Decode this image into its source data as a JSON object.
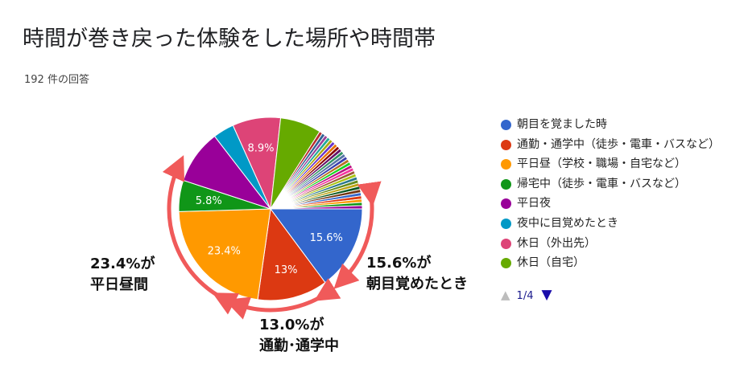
{
  "title": "時間が巻き戻った体験をした場所や時間帯",
  "response_count": "192 件の回答",
  "chart_data": {
    "type": "pie",
    "title": "時間が巻き戻った体験をした場所や時間帯",
    "slices": [
      {
        "label": "朝目を覚ました時",
        "value": 15.6,
        "color": "#3366cc",
        "data_label": "15.6%"
      },
      {
        "label": "通勤・通学中（徒歩・電車・バスなど）",
        "value": 13.0,
        "color": "#dc3912",
        "data_label": "13%"
      },
      {
        "label": "平日昼（学校・職場・自宅など）",
        "value": 23.4,
        "color": "#ff9900",
        "data_label": "23.4%"
      },
      {
        "label": "帰宅中（徒歩・電車・バスなど）",
        "value": 5.8,
        "color": "#109618",
        "data_label": "5.8%"
      },
      {
        "label": "平日夜",
        "value": 10.0,
        "color": "#990099",
        "data_label": ""
      },
      {
        "label": "夜中に目覚めたとき",
        "value": 3.9,
        "color": "#0099c6",
        "data_label": ""
      },
      {
        "label": "休日（外出先）",
        "value": 8.9,
        "color": "#dd4477",
        "data_label": "8.9%"
      },
      {
        "label": "休日（自宅）",
        "value": 7.6,
        "color": "#66aa00",
        "data_label": ""
      },
      {
        "label": "",
        "value": 0.6,
        "color": "#b82e2e"
      },
      {
        "label": "",
        "value": 0.6,
        "color": "#316395"
      },
      {
        "label": "",
        "value": 0.6,
        "color": "#994499"
      },
      {
        "label": "",
        "value": 0.6,
        "color": "#22aa99"
      },
      {
        "label": "",
        "value": 0.6,
        "color": "#aaaa11"
      },
      {
        "label": "",
        "value": 0.6,
        "color": "#6633cc"
      },
      {
        "label": "",
        "value": 0.6,
        "color": "#e67300"
      },
      {
        "label": "",
        "value": 0.6,
        "color": "#8b0707"
      },
      {
        "label": "",
        "value": 0.6,
        "color": "#651067"
      },
      {
        "label": "",
        "value": 0.6,
        "color": "#329262"
      },
      {
        "label": "",
        "value": 0.6,
        "color": "#5574a6"
      },
      {
        "label": "",
        "value": 0.6,
        "color": "#3b3eac"
      },
      {
        "label": "",
        "value": 0.6,
        "color": "#b77322"
      },
      {
        "label": "",
        "value": 0.6,
        "color": "#16d620"
      },
      {
        "label": "",
        "value": 0.6,
        "color": "#b91383"
      },
      {
        "label": "",
        "value": 0.6,
        "color": "#f4359e"
      },
      {
        "label": "",
        "value": 0.6,
        "color": "#9c5935"
      },
      {
        "label": "",
        "value": 0.6,
        "color": "#a9c413"
      },
      {
        "label": "",
        "value": 0.6,
        "color": "#2a778d"
      },
      {
        "label": "",
        "value": 0.6,
        "color": "#668d1c"
      },
      {
        "label": "",
        "value": 0.6,
        "color": "#bea413"
      },
      {
        "label": "",
        "value": 0.6,
        "color": "#0c5922"
      },
      {
        "label": "",
        "value": 0.6,
        "color": "#743411"
      },
      {
        "label": "",
        "value": 0.6,
        "color": "#3366cc"
      },
      {
        "label": "",
        "value": 0.6,
        "color": "#dc3912"
      },
      {
        "label": "",
        "value": 0.6,
        "color": "#ff9900"
      },
      {
        "label": "",
        "value": 0.6,
        "color": "#109618"
      },
      {
        "label": "",
        "value": 0.6,
        "color": "#990099"
      }
    ],
    "legend_position": "right"
  },
  "legend": {
    "items": [
      {
        "label": "朝目を覚ました時",
        "color": "#3366cc"
      },
      {
        "label": "通勤・通学中（徒歩・電車・バスなど）",
        "color": "#dc3912"
      },
      {
        "label": "平日昼（学校・職場・自宅など）",
        "color": "#ff9900"
      },
      {
        "label": "帰宅中（徒歩・電車・バスなど）",
        "color": "#109618"
      },
      {
        "label": "平日夜",
        "color": "#990099"
      },
      {
        "label": "夜中に目覚めたとき",
        "color": "#0099c6"
      },
      {
        "label": "休日（外出先）",
        "color": "#dd4477"
      },
      {
        "label": "休日（自宅）",
        "color": "#66aa00"
      }
    ],
    "page": "1/4",
    "prev_icon": "triangle-up-icon",
    "next_icon": "triangle-down-icon"
  },
  "annotations": {
    "left": {
      "line1": "23.4%が",
      "line2": "平日昼間"
    },
    "right": {
      "line1": "15.6%が",
      "line2": "朝目覚めたとき"
    },
    "bottom": {
      "line1": "13.0%が",
      "line2": "通勤･通学中"
    },
    "arrow_color": "#f05a5a"
  }
}
